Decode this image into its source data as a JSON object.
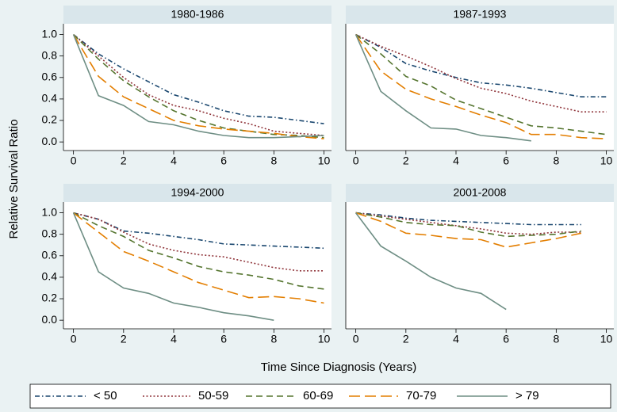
{
  "y_label": "Relative Survival Ratio",
  "x_label": "Time Since Diagnosis (Years)",
  "chart_data": [
    {
      "type": "line",
      "title": "1980-1986",
      "x": [
        0,
        1,
        2,
        3,
        4,
        5,
        6,
        7,
        8,
        9,
        10
      ],
      "xlim": [
        -0.4,
        10.3
      ],
      "ylim": [
        -0.08,
        1.1
      ],
      "xticks": [
        0,
        2,
        4,
        6,
        8,
        10
      ],
      "yticks": [
        {
          "value": 0,
          "label": "0.0"
        },
        {
          "value": 0.2,
          "label": "0.2"
        },
        {
          "value": 0.4,
          "label": "0.4"
        },
        {
          "value": 0.6,
          "label": "0.6"
        },
        {
          "value": 0.8,
          "label": "0.8"
        },
        {
          "value": 1,
          "label": "1.0"
        }
      ],
      "series": [
        {
          "name": "< 50",
          "color": "#1a476f",
          "dash": "dash-dot",
          "values": [
            1.0,
            0.82,
            0.68,
            0.56,
            0.44,
            0.37,
            0.29,
            0.24,
            0.23,
            0.2,
            0.17
          ]
        },
        {
          "name": "50-59",
          "color": "#90353b",
          "dash": "dot",
          "values": [
            1.0,
            0.8,
            0.6,
            0.44,
            0.34,
            0.29,
            0.22,
            0.17,
            0.1,
            0.08,
            0.06
          ]
        },
        {
          "name": "60-69",
          "color": "#55752f",
          "dash": "dash",
          "values": [
            1.0,
            0.77,
            0.57,
            0.42,
            0.29,
            0.2,
            0.13,
            0.1,
            0.07,
            0.06,
            0.04
          ]
        },
        {
          "name": "70-79",
          "color": "#e37e00",
          "dash": "long-dash",
          "values": [
            1.0,
            0.61,
            0.42,
            0.31,
            0.2,
            0.15,
            0.12,
            0.1,
            0.08,
            0.05,
            0.03
          ]
        },
        {
          "name": "> 79",
          "color": "#6e8e84",
          "dash": "solid",
          "values": [
            1.0,
            0.43,
            0.34,
            0.19,
            0.16,
            0.1,
            0.06,
            0.04,
            0.04,
            0.05,
            0.06
          ]
        }
      ]
    },
    {
      "type": "line",
      "title": "1987-1993",
      "x": [
        0,
        1,
        2,
        3,
        4,
        5,
        6,
        7,
        8,
        9,
        10
      ],
      "xlim": [
        -0.4,
        10.3
      ],
      "ylim": [
        -0.08,
        1.1
      ],
      "xticks": [
        0,
        2,
        4,
        6,
        8,
        10
      ],
      "series": [
        {
          "name": "< 50",
          "color": "#1a476f",
          "dash": "dash-dot",
          "values": [
            1.0,
            0.88,
            0.73,
            0.66,
            0.6,
            0.55,
            0.53,
            0.5,
            0.46,
            0.42,
            0.42
          ]
        },
        {
          "name": "50-59",
          "color": "#90353b",
          "dash": "dot",
          "values": [
            1.0,
            0.89,
            0.8,
            0.7,
            0.59,
            0.5,
            0.45,
            0.38,
            0.33,
            0.28,
            0.28
          ]
        },
        {
          "name": "60-69",
          "color": "#55752f",
          "dash": "dash",
          "values": [
            1.0,
            0.82,
            0.61,
            0.52,
            0.39,
            0.31,
            0.23,
            0.15,
            0.13,
            0.1,
            0.07
          ]
        },
        {
          "name": "70-79",
          "color": "#e37e00",
          "dash": "long-dash",
          "values": [
            1.0,
            0.66,
            0.49,
            0.4,
            0.33,
            0.25,
            0.18,
            0.07,
            0.07,
            0.04,
            0.03
          ]
        },
        {
          "name": "> 79",
          "color": "#6e8e84",
          "dash": "solid",
          "values": [
            1.0,
            0.47,
            0.29,
            0.13,
            0.12,
            0.06,
            0.04,
            0.01,
            null,
            null,
            null
          ]
        }
      ]
    },
    {
      "type": "line",
      "title": "1994-2000",
      "x": [
        0,
        1,
        2,
        3,
        4,
        5,
        6,
        7,
        8,
        9,
        10
      ],
      "xlim": [
        -0.4,
        10.3
      ],
      "ylim": [
        -0.08,
        1.1
      ],
      "xticks": [
        0,
        2,
        4,
        6,
        8,
        10
      ],
      "yticks": [
        {
          "value": 0,
          "label": "0.0"
        },
        {
          "value": 0.2,
          "label": "0.2"
        },
        {
          "value": 0.4,
          "label": "0.4"
        },
        {
          "value": 0.6,
          "label": "0.6"
        },
        {
          "value": 0.8,
          "label": "0.8"
        },
        {
          "value": 1,
          "label": "1.0"
        }
      ],
      "series": [
        {
          "name": "< 50",
          "color": "#1a476f",
          "dash": "dash-dot",
          "values": [
            1.0,
            0.94,
            0.83,
            0.81,
            0.78,
            0.75,
            0.71,
            0.7,
            0.69,
            0.68,
            0.67
          ]
        },
        {
          "name": "50-59",
          "color": "#90353b",
          "dash": "dot",
          "values": [
            1.0,
            0.94,
            0.82,
            0.71,
            0.65,
            0.61,
            0.59,
            0.54,
            0.49,
            0.46,
            0.46
          ]
        },
        {
          "name": "60-69",
          "color": "#55752f",
          "dash": "dash",
          "values": [
            1.0,
            0.88,
            0.78,
            0.65,
            0.58,
            0.5,
            0.45,
            0.42,
            0.38,
            0.32,
            0.29
          ]
        },
        {
          "name": "70-79",
          "color": "#e37e00",
          "dash": "long-dash",
          "values": [
            1.0,
            0.82,
            0.64,
            0.55,
            0.45,
            0.35,
            0.28,
            0.21,
            0.22,
            0.2,
            0.16
          ]
        },
        {
          "name": "> 79",
          "color": "#6e8e84",
          "dash": "solid",
          "values": [
            1.0,
            0.45,
            0.3,
            0.25,
            0.16,
            0.12,
            0.07,
            0.04,
            0.0,
            null,
            null
          ]
        }
      ]
    },
    {
      "type": "line",
      "title": "2001-2008",
      "x": [
        0,
        1,
        2,
        3,
        4,
        5,
        6,
        7,
        8,
        9
      ],
      "xlim": [
        -0.4,
        10.3
      ],
      "ylim": [
        -0.08,
        1.1
      ],
      "xticks": [
        0,
        2,
        4,
        6,
        8,
        10
      ],
      "series": [
        {
          "name": "< 50",
          "color": "#1a476f",
          "dash": "dash-dot",
          "values": [
            1.0,
            0.98,
            0.95,
            0.93,
            0.92,
            0.91,
            0.9,
            0.89,
            0.89,
            0.89
          ]
        },
        {
          "name": "50-59",
          "color": "#90353b",
          "dash": "dot",
          "values": [
            1.0,
            0.97,
            0.94,
            0.91,
            0.88,
            0.85,
            0.81,
            0.8,
            0.82,
            0.82
          ]
        },
        {
          "name": "60-69",
          "color": "#55752f",
          "dash": "dash",
          "values": [
            1.0,
            0.96,
            0.91,
            0.89,
            0.88,
            0.82,
            0.78,
            0.79,
            0.8,
            0.83
          ]
        },
        {
          "name": "70-79",
          "color": "#e37e00",
          "dash": "long-dash",
          "values": [
            1.0,
            0.92,
            0.81,
            0.79,
            0.76,
            0.75,
            0.68,
            0.72,
            0.76,
            0.81
          ]
        },
        {
          "name": "> 79",
          "color": "#6e8e84",
          "dash": "solid",
          "values": [
            1.0,
            0.69,
            0.55,
            0.4,
            0.3,
            0.25,
            0.1,
            null,
            null,
            null
          ]
        }
      ]
    }
  ]
}
